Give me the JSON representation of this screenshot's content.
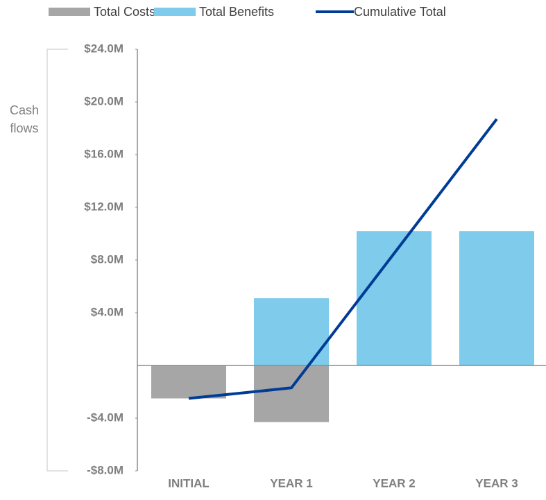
{
  "chart_data": {
    "type": "bar-line",
    "y_label": "Cash flows",
    "categories": [
      "INITIAL",
      "YEAR 1",
      "YEAR 2",
      "YEAR 3"
    ],
    "series": [
      {
        "name": "Total Costs",
        "type": "bar",
        "color": "#a6a6a6",
        "values": [
          -2.5,
          -4.3,
          0,
          0
        ]
      },
      {
        "name": "Total Benefits",
        "type": "bar",
        "color": "#7ecbeb",
        "values": [
          0,
          5.1,
          10.2,
          10.2
        ]
      },
      {
        "name": "Cumulative Total",
        "type": "line",
        "color": "#003c96",
        "values": [
          -2.5,
          -1.7,
          8.5,
          18.7
        ]
      }
    ],
    "ylim": [
      -8,
      24
    ],
    "yticks": [
      {
        "value": 24,
        "label": "$24.0M"
      },
      {
        "value": 20,
        "label": "$20.0M"
      },
      {
        "value": 16,
        "label": "$16.0M"
      },
      {
        "value": 12,
        "label": "$12.0M"
      },
      {
        "value": 8,
        "label": "$8.0M"
      },
      {
        "value": 4,
        "label": "$4.0M"
      },
      {
        "value": -4,
        "label": "-$4.0M"
      },
      {
        "value": -8,
        "label": "-$8.0M"
      }
    ],
    "legend": "top"
  }
}
